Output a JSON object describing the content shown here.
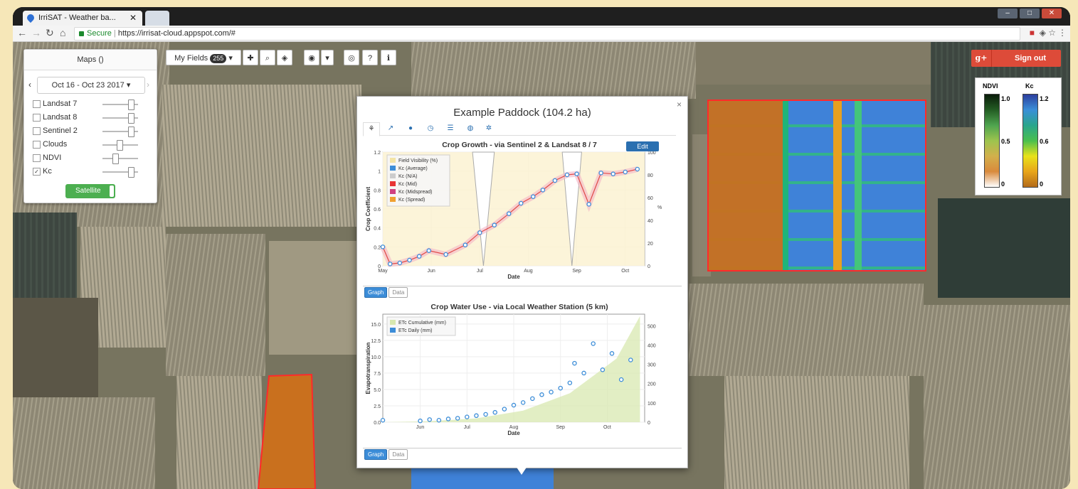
{
  "browser": {
    "tab_title": "IrriSAT - Weather ba...",
    "url_secure": "Secure",
    "url": "https://irrisat-cloud.appspot.com/#"
  },
  "maps_panel": {
    "title": "Maps ()",
    "date_range": "Oct 16 - Oct 23 2017",
    "layers": [
      {
        "label": "Landsat 7",
        "checked": false
      },
      {
        "label": "Landsat 8",
        "checked": false
      },
      {
        "label": "Sentinel 2",
        "checked": false
      },
      {
        "label": "Clouds",
        "checked": false
      },
      {
        "label": "NDVI",
        "checked": false
      },
      {
        "label": "Kc",
        "checked": true
      }
    ],
    "toggle_label": "Satellite"
  },
  "toolbar": {
    "my_fields_label": "My Fields",
    "field_count": "255"
  },
  "auth": {
    "gplus": "g+",
    "signout_label": "Sign out"
  },
  "legend": {
    "ndvi_label": "NDVI",
    "kc_label": "Kc",
    "ndvi_ticks": [
      "1.0",
      "0.5",
      "0"
    ],
    "kc_ticks": [
      "1.2",
      "0.6",
      "0"
    ]
  },
  "modal": {
    "title": "Example Paddock (104.2 ha)",
    "close": "×",
    "edit_label": "Edit",
    "graph_tab": "Graph",
    "data_tab": "Data"
  },
  "chart_data": [
    {
      "type": "line",
      "title": "Crop Growth - via Sentinel 2 & Landsat 8 / 7",
      "xlabel": "Date",
      "ylabel": "Crop Coefficient",
      "y2label": "%",
      "x_ticks": [
        "May",
        "Jun",
        "Jul",
        "Aug",
        "Sep",
        "Oct"
      ],
      "y_ticks": [
        "0",
        "0.2",
        "0.4",
        "0.6",
        "0.8",
        "1",
        "1.2"
      ],
      "y2_ticks": [
        "0",
        "20",
        "40",
        "60",
        "80",
        "100"
      ],
      "ylim": [
        0,
        1.2
      ],
      "y2lim": [
        0,
        100
      ],
      "legend": [
        "Field Visibility (%)",
        "Kc (Average)",
        "Kc (N/A)",
        "Kc (Mid)",
        "Kc (Midspread)",
        "Kc (Spread)"
      ],
      "legend_colors": [
        "#f3e4a6",
        "#3c8dd8",
        "#cccccc",
        "#e83434",
        "#d04080",
        "#f0a030"
      ],
      "series": [
        {
          "name": "Kc (Average)",
          "x": [
            0.0,
            0.15,
            0.35,
            0.55,
            0.75,
            0.95,
            1.3,
            1.7,
            2.0,
            2.3,
            2.6,
            2.85,
            3.1,
            3.3,
            3.55,
            3.8,
            4.0,
            4.25,
            4.5,
            4.75,
            5.0,
            5.25
          ],
          "values": [
            0.2,
            0.02,
            0.03,
            0.06,
            0.1,
            0.16,
            0.12,
            0.22,
            0.35,
            0.43,
            0.55,
            0.66,
            0.73,
            0.8,
            0.9,
            0.96,
            0.97,
            0.65,
            0.98,
            0.97,
            0.99,
            1.02
          ]
        }
      ]
    },
    {
      "type": "scatter",
      "title": "Crop Water Use - via Local Weather Station (5 km)",
      "xlabel": "Date",
      "ylabel": "Evapotranspiration",
      "x_ticks": [
        "Jun",
        "Jul",
        "Aug",
        "Sep",
        "Oct"
      ],
      "y_ticks": [
        "0.0",
        "2.5",
        "5.0",
        "7.5",
        "10.0",
        "12.5",
        "15.0"
      ],
      "y2_ticks": [
        "0",
        "100",
        "200",
        "300",
        "400",
        "500"
      ],
      "ylim": [
        0,
        16.5
      ],
      "y2lim": [
        0,
        560
      ],
      "legend": [
        "ETc Cumulative (mm)",
        "ETc Daily (mm)"
      ],
      "legend_colors": [
        "#d8e8b0",
        "#3c8dd8"
      ],
      "cumulative": {
        "x": [
          0,
          1,
          2,
          3,
          4,
          5,
          5.5
        ],
        "values": [
          0,
          5,
          20,
          60,
          150,
          330,
          550
        ]
      },
      "series": [
        {
          "name": "ETc Daily (mm)",
          "x": [
            0.0,
            0.8,
            1.0,
            1.2,
            1.4,
            1.6,
            1.8,
            2.0,
            2.2,
            2.4,
            2.6,
            2.8,
            3.0,
            3.2,
            3.4,
            3.6,
            3.8,
            4.0,
            4.1,
            4.3,
            4.5,
            4.7,
            4.9,
            5.1,
            5.3
          ],
          "values": [
            0.3,
            0.2,
            0.4,
            0.3,
            0.5,
            0.6,
            0.8,
            1.0,
            1.2,
            1.5,
            2.0,
            2.6,
            3.0,
            3.6,
            4.2,
            4.6,
            5.2,
            6.0,
            9.0,
            7.5,
            12.0,
            8.0,
            10.5,
            6.5,
            9.5
          ]
        }
      ]
    }
  ]
}
